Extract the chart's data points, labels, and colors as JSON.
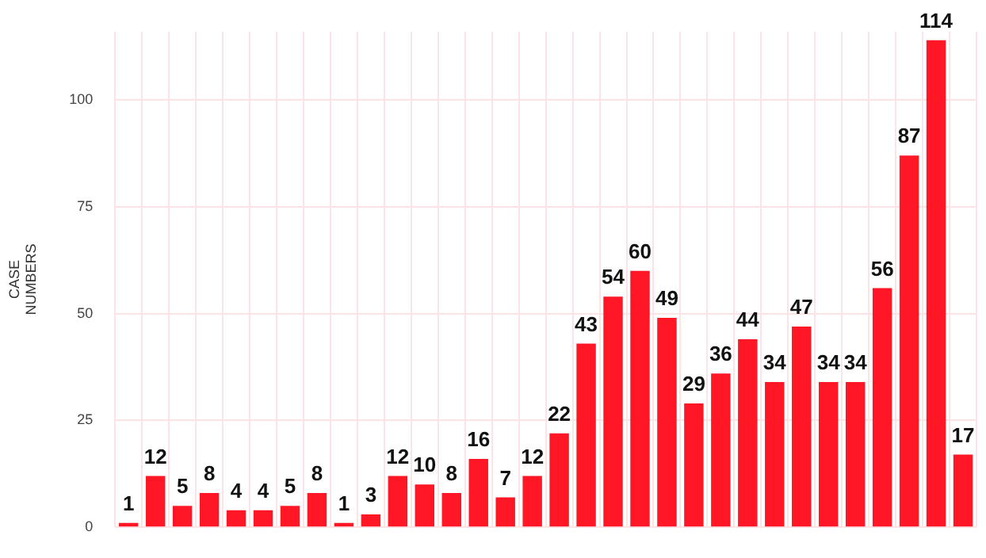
{
  "chart_data": {
    "type": "bar",
    "ylabel": "CASE NUMBERS",
    "categories": [
      null,
      null,
      null,
      null,
      null,
      null,
      null,
      null,
      null,
      null,
      null,
      null,
      null,
      null,
      null,
      null,
      null,
      null,
      null,
      null,
      null,
      null,
      null,
      null,
      null,
      null,
      null,
      null,
      null,
      null,
      null,
      null
    ],
    "values": [
      1,
      12,
      5,
      8,
      4,
      4,
      5,
      8,
      1,
      3,
      12,
      10,
      8,
      16,
      7,
      12,
      22,
      43,
      54,
      60,
      49,
      29,
      36,
      44,
      34,
      47,
      34,
      34,
      56,
      87,
      114,
      17
    ],
    "color": "#ff1726",
    "ylim": [
      0,
      116
    ],
    "yticks": [
      0,
      25,
      50,
      75,
      100
    ],
    "grid": true,
    "data_labels": true
  }
}
